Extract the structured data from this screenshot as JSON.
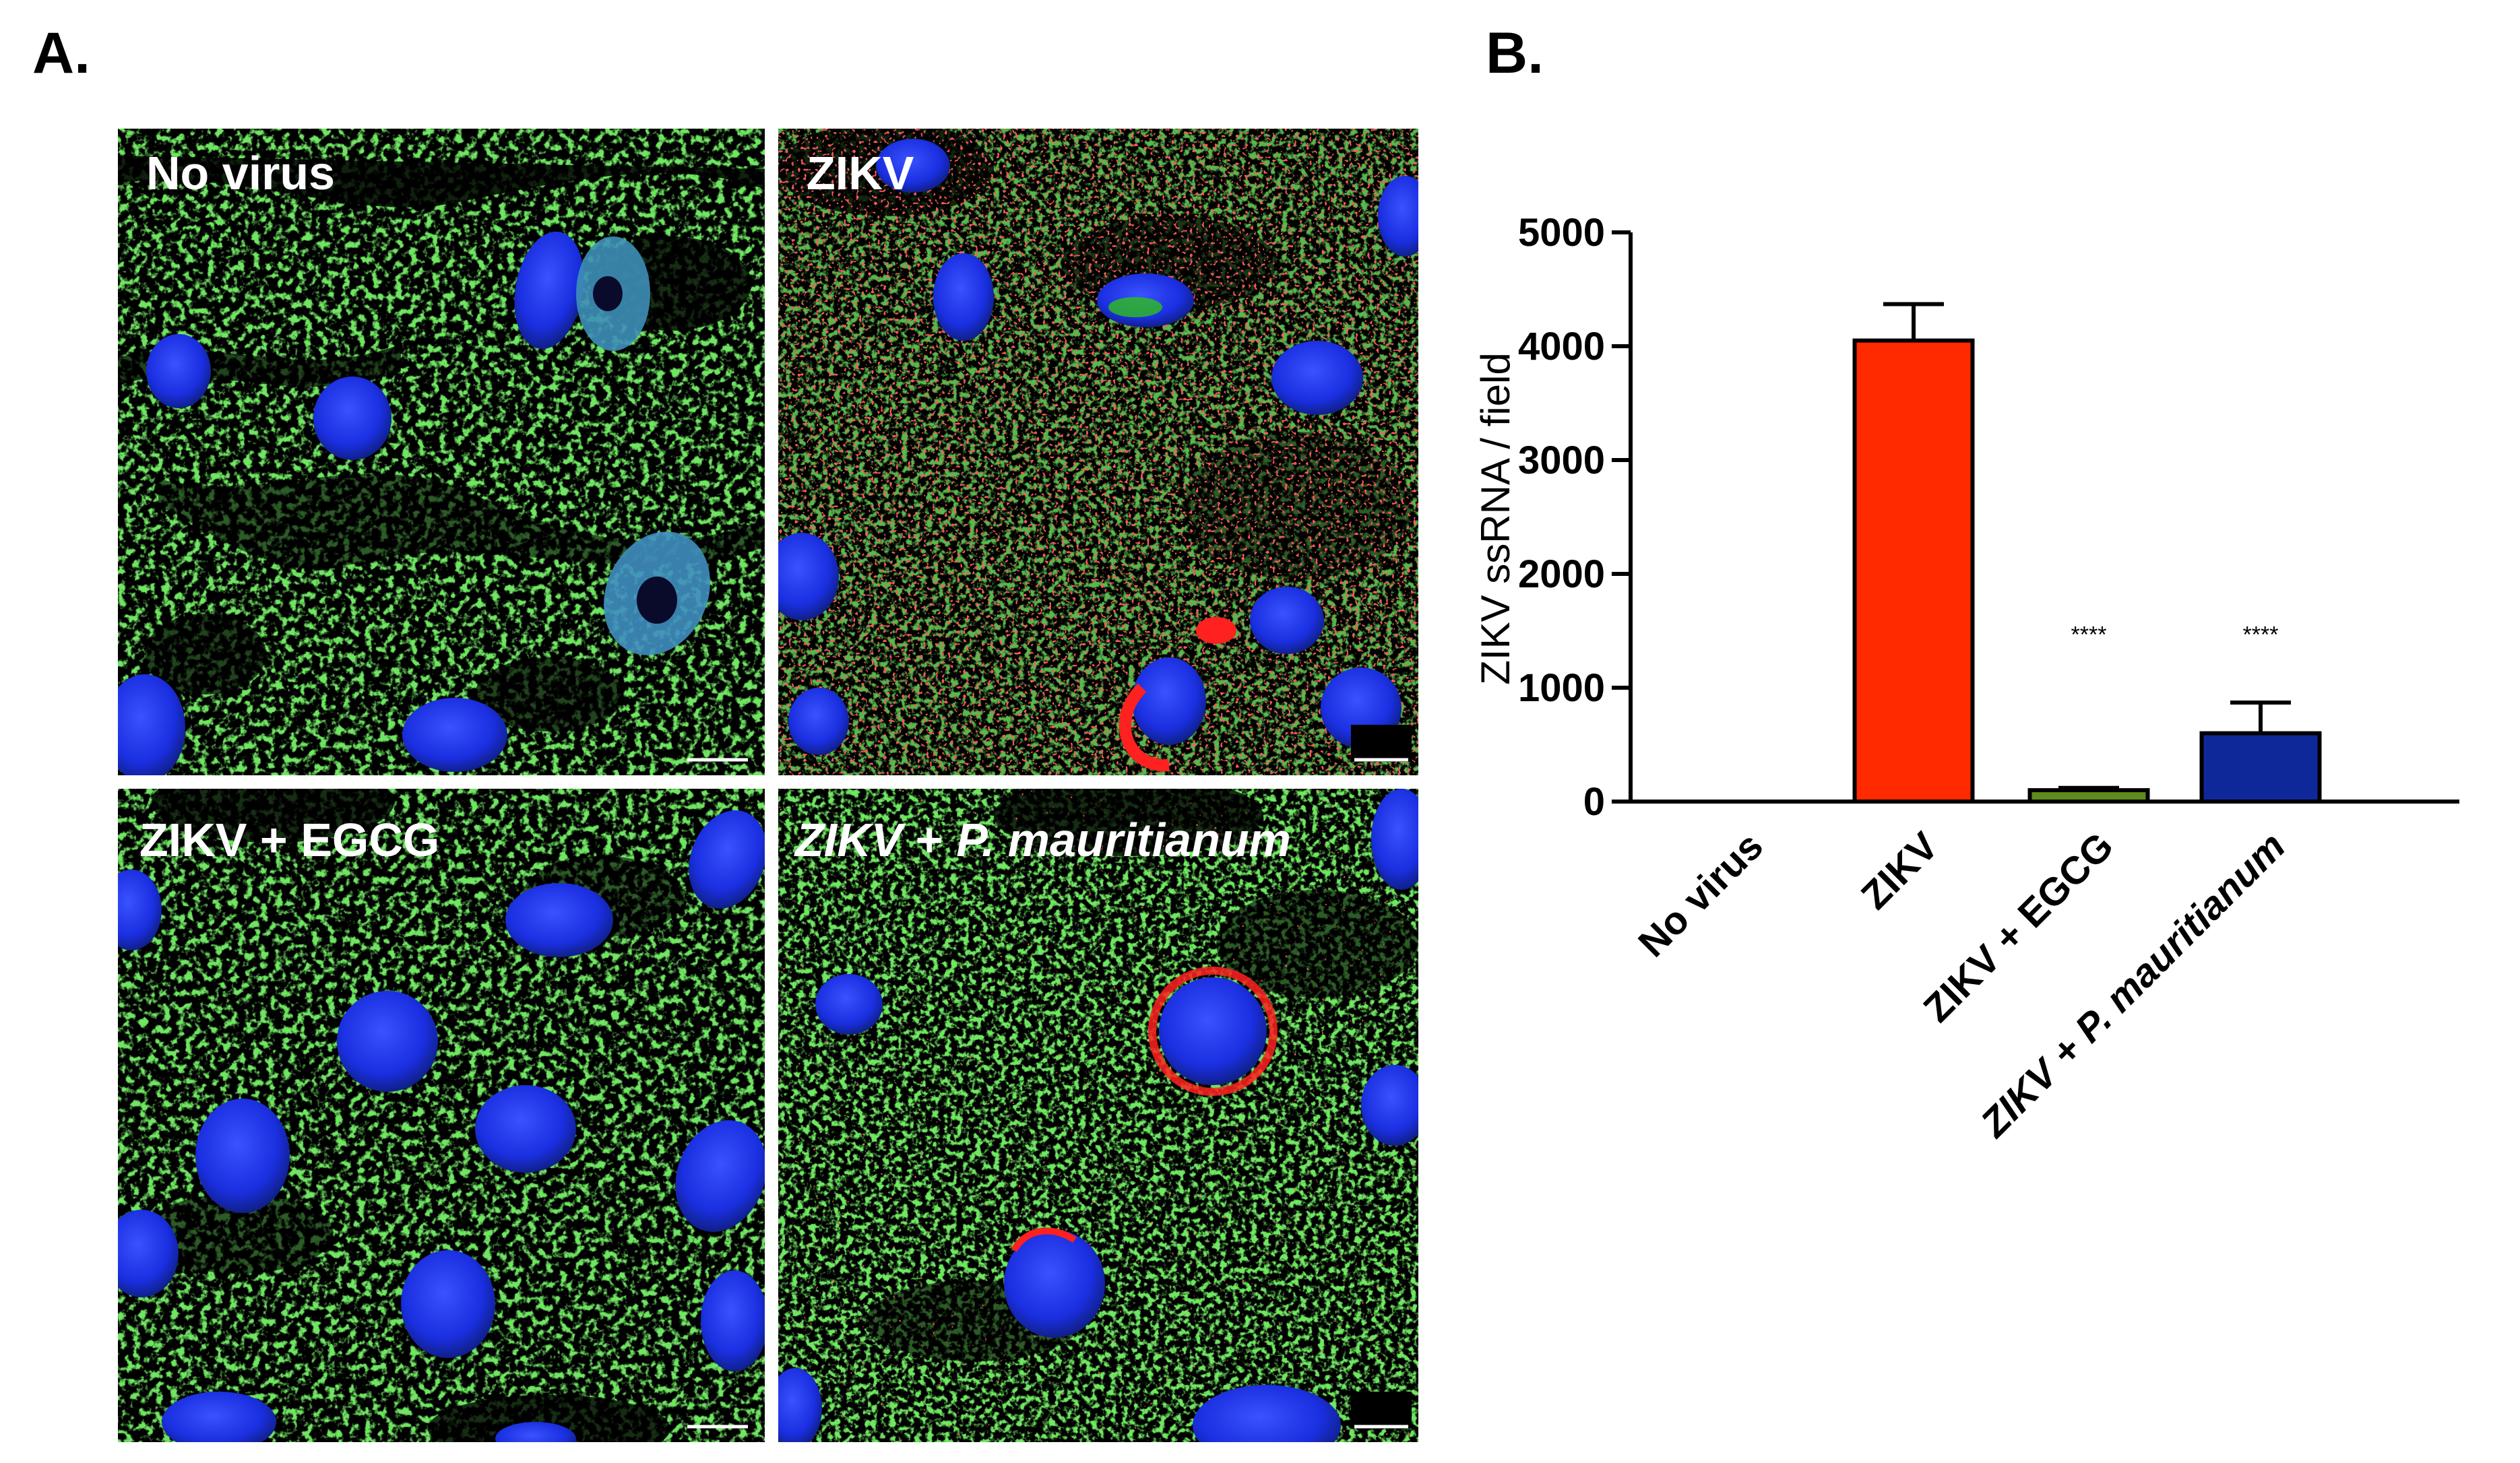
{
  "panel_a_label": "A.",
  "panel_b_label": "B.",
  "micrographs": [
    {
      "label": "No virus",
      "italic_prefix": "",
      "italic_suffix": "",
      "virus_signal": "none",
      "scale_bar": "scale-bar"
    },
    {
      "label": "ZIKV",
      "italic_prefix": "",
      "italic_suffix": "",
      "virus_signal": "high",
      "scale_bar": "scale-bar"
    },
    {
      "label": "ZIKV + EGCG",
      "italic_prefix": "",
      "italic_suffix": "",
      "virus_signal": "none",
      "scale_bar": "scale-bar"
    },
    {
      "label": "",
      "italic_prefix": "ZIKV",
      "italic_mid": " + ",
      "italic_suffix": "P. mauritianum",
      "virus_signal": "low",
      "scale_bar": "scale-bar"
    }
  ],
  "colors": {
    "nuclei": "#1a2fe0",
    "cytoplasm": "#2fbf1a",
    "virus": "#ff1a1a",
    "background": "#000000"
  },
  "chart_data": {
    "type": "bar",
    "title": "",
    "xlabel": "",
    "ylabel": "ZIKV ssRNA / field",
    "ylim": [
      0,
      5000
    ],
    "yticks": [
      "0",
      "1000",
      "2000",
      "3000",
      "4000",
      "5000"
    ],
    "categories": [
      "No virus",
      "ZIKV",
      "ZIKV + EGCG",
      "ZIKV + P. mauritianum"
    ],
    "values": [
      0,
      4050,
      100,
      600
    ],
    "errors": [
      0,
      320,
      20,
      270
    ],
    "significance": [
      "",
      "",
      "****",
      "****"
    ],
    "bar_colors": [
      "#ffffff",
      "#ff2a00",
      "#5f8a1e",
      "#0f2899"
    ],
    "grid": false,
    "legend": "none"
  }
}
